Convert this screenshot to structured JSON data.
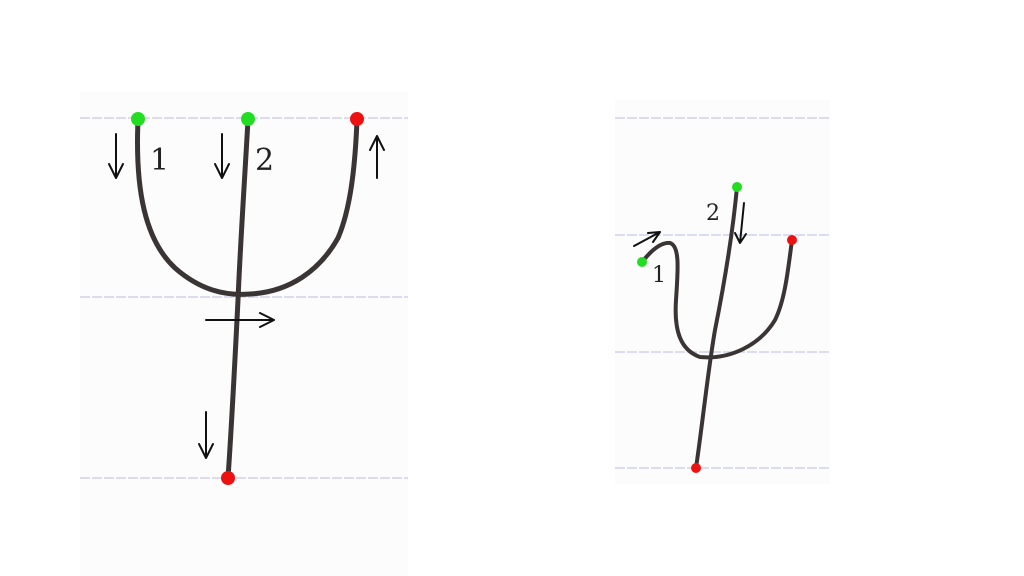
{
  "diagram": {
    "left": {
      "stroke_labels": [
        "1",
        "2"
      ]
    },
    "right": {
      "stroke_labels": [
        "1",
        "2"
      ]
    }
  },
  "colors": {
    "start_dot": "#22dd22",
    "end_dot": "#ee1111",
    "stroke": "#3a3534",
    "arrow": "#111111",
    "ruled_line": "#dcdcf0"
  }
}
